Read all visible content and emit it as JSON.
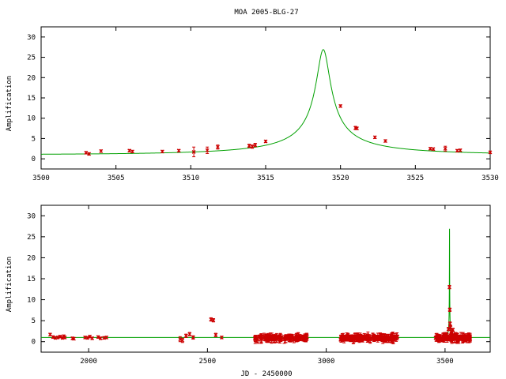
{
  "title": "MOA 2005-BLG-27",
  "chart_data": [
    {
      "type": "line",
      "panel": "top",
      "xlabel": "",
      "ylabel": "Amplification",
      "xlim": [
        3500,
        3530
      ],
      "ylim": [
        -2.5,
        32.5
      ],
      "x_ticks": [
        3500,
        3505,
        3510,
        3515,
        3520,
        3525,
        3530
      ],
      "y_ticks": [
        0,
        5,
        10,
        15,
        20,
        25,
        30
      ],
      "grid": false,
      "model": {
        "color": "#00a000",
        "t0": 3518.85,
        "u0": 0.0372,
        "tE": 12.5,
        "baseline": 1.0
      },
      "series": [
        {
          "color": "#cc0000",
          "x": [
            3503.0,
            3503.2,
            3504.0,
            3505.9,
            3506.1,
            3508.1,
            3509.2,
            3510.2,
            3511.1,
            3511.8,
            3513.9,
            3514.1,
            3514.3,
            3515.0,
            3520.0,
            3521.0,
            3521.1,
            3522.3,
            3523.0,
            3526.0,
            3526.2,
            3527.0,
            3527.8,
            3528.0,
            3530.0
          ],
          "y": [
            1.5,
            1.2,
            1.9,
            2.0,
            1.8,
            1.8,
            2.0,
            1.7,
            2.1,
            2.9,
            3.2,
            3.0,
            3.4,
            4.3,
            13.0,
            7.6,
            7.5,
            5.3,
            4.4,
            2.5,
            2.4,
            2.5,
            2.0,
            2.1,
            1.6
          ],
          "err": [
            0.3,
            0.3,
            0.3,
            0.3,
            0.3,
            0.3,
            0.3,
            1.2,
            0.8,
            0.5,
            0.4,
            0.4,
            0.4,
            0.3,
            0.3,
            0.4,
            0.3,
            0.3,
            0.3,
            0.3,
            0.3,
            0.6,
            0.3,
            0.3,
            0.3
          ]
        }
      ]
    },
    {
      "type": "line",
      "panel": "bottom",
      "xlabel": "JD - 2450000",
      "ylabel": "Amplification",
      "xlim": [
        1800,
        3690
      ],
      "ylim": [
        -2.5,
        32.5
      ],
      "x_ticks": [
        2000,
        2500,
        3000,
        3500
      ],
      "y_ticks": [
        0,
        5,
        10,
        15,
        20,
        25,
        30
      ],
      "grid": false,
      "model": {
        "color": "#00a000",
        "t0": 3518.85,
        "u0": 0.0372,
        "tE": 12.5,
        "baseline": 1.0
      },
      "series": [
        {
          "color": "#cc0000",
          "x": [
            1838,
            1850,
            1860,
            1870,
            1880,
            1890,
            1895,
            1900,
            1932,
            1938,
            1985,
            1995,
            2005,
            2015,
            2040,
            2050,
            2065,
            2075,
            2385,
            2395,
            2410,
            2425,
            2440,
            2515,
            2525,
            2535,
            2560,
            2700,
            2750,
            2800,
            2850,
            2900
          ],
          "y": [
            1.7,
            1.1,
            0.9,
            1.0,
            1.2,
            0.9,
            1.3,
            1.0,
            0.8,
            0.7,
            1.0,
            0.9,
            1.2,
            0.8,
            1.1,
            0.8,
            0.9,
            1.0,
            0.6,
            0.3,
            1.4,
            1.8,
            1.0,
            5.3,
            5.1,
            1.6,
            1.0,
            0.9,
            1.2,
            1.0,
            1.1,
            0.9
          ],
          "err": [
            0.3,
            0.3,
            0.3,
            0.3,
            0.3,
            0.3,
            0.3,
            0.3,
            0.3,
            0.3,
            0.3,
            0.3,
            0.3,
            0.3,
            0.3,
            0.3,
            0.3,
            0.3,
            0.6,
            0.5,
            0.4,
            0.4,
            0.4,
            0.4,
            0.4,
            0.4,
            0.3,
            0.4,
            0.4,
            0.4,
            0.4,
            0.4
          ]
        }
      ],
      "dense_ranges": [
        {
          "start": 2700,
          "end": 2920,
          "count": 120
        },
        {
          "start": 3060,
          "end": 3300,
          "count": 160
        },
        {
          "start": 3460,
          "end": 3610,
          "count": 140
        }
      ],
      "extra_points": {
        "x": [
          3518.5,
          3520.0,
          3521.0,
          3523.0,
          3514.0,
          3526.0,
          3505.0,
          3528.0,
          3533,
          3545
        ],
        "y": [
          13.0,
          7.6,
          4.3,
          3.4,
          3.0,
          2.4,
          1.8,
          2.0,
          2.8,
          1.6
        ]
      }
    }
  ]
}
